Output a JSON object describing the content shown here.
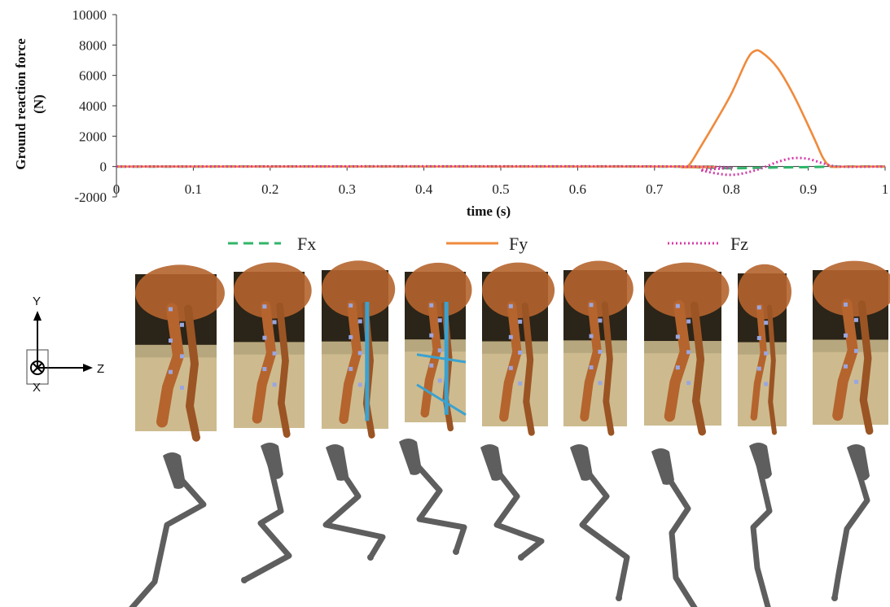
{
  "chart_data": {
    "type": "line",
    "xlabel": "time (s)",
    "ylabel": "Ground reaction force (N)",
    "ylabel_lines": [
      "Ground reaction force",
      "(N)"
    ],
    "xlim": [
      0,
      1
    ],
    "ylim": [
      -2000,
      10000
    ],
    "xticks": [
      0,
      0.1,
      0.2,
      0.3,
      0.4,
      0.5,
      0.6,
      0.7,
      0.8,
      0.9,
      1
    ],
    "xtick_labels": [
      "0",
      "0.1",
      "0.2",
      "0.3",
      "0.4",
      "0.5",
      "0.6",
      "0.7",
      "0.8",
      "0.9",
      "1"
    ],
    "yticks": [
      -2000,
      0,
      2000,
      4000,
      6000,
      8000,
      10000
    ],
    "ytick_labels": [
      "-2000",
      "0",
      "2000",
      "4000",
      "6000",
      "8000",
      "10000"
    ],
    "grid": false,
    "legend_position": "bottom",
    "series": [
      {
        "name": "Fx",
        "color": "#2fb56a",
        "style": "dashed",
        "x": [
          0,
          0.72,
          0.74,
          0.76,
          0.78,
          0.8,
          0.82,
          0.84,
          0.86,
          0.88,
          0.9,
          0.92,
          0.95,
          1.0
        ],
        "y": [
          0,
          0,
          -20,
          -60,
          -90,
          -110,
          -100,
          -80,
          -60,
          -50,
          -40,
          -20,
          0,
          0
        ]
      },
      {
        "name": "Fy",
        "color": "#f08a3c",
        "style": "solid",
        "x": [
          0,
          0.72,
          0.735,
          0.745,
          0.76,
          0.78,
          0.8,
          0.82,
          0.83,
          0.84,
          0.86,
          0.88,
          0.9,
          0.91,
          0.92,
          0.93,
          0.95,
          1.0
        ],
        "y": [
          0,
          0,
          -50,
          100,
          1300,
          3000,
          4800,
          7000,
          7600,
          7500,
          6500,
          4800,
          2700,
          1600,
          500,
          0,
          0,
          0
        ]
      },
      {
        "name": "Fz",
        "color": "#d63aa8",
        "style": "dotted",
        "x": [
          0,
          0.74,
          0.76,
          0.78,
          0.8,
          0.82,
          0.84,
          0.86,
          0.88,
          0.9,
          0.92,
          0.94,
          1.0
        ],
        "y": [
          0,
          0,
          -250,
          -450,
          -550,
          -400,
          -100,
          300,
          550,
          500,
          200,
          0,
          0
        ]
      }
    ]
  },
  "legend": {
    "fx": "Fx",
    "fy": "Fy",
    "fz": "Fz"
  },
  "axes_indicator": {
    "y_label": "Y",
    "z_label": "Z",
    "x_label": "X"
  },
  "photo_strip": {
    "frame_count": 9,
    "ground_color": "#cdbb8f",
    "sky_color": "#2b2418",
    "horse_color": "#b5642d",
    "marker_color": "#9aa6e0",
    "pole_color": "#3aa2d0"
  },
  "skeleton_strip": {
    "frame_count": 9,
    "bone_color": "#5e5e5e"
  }
}
